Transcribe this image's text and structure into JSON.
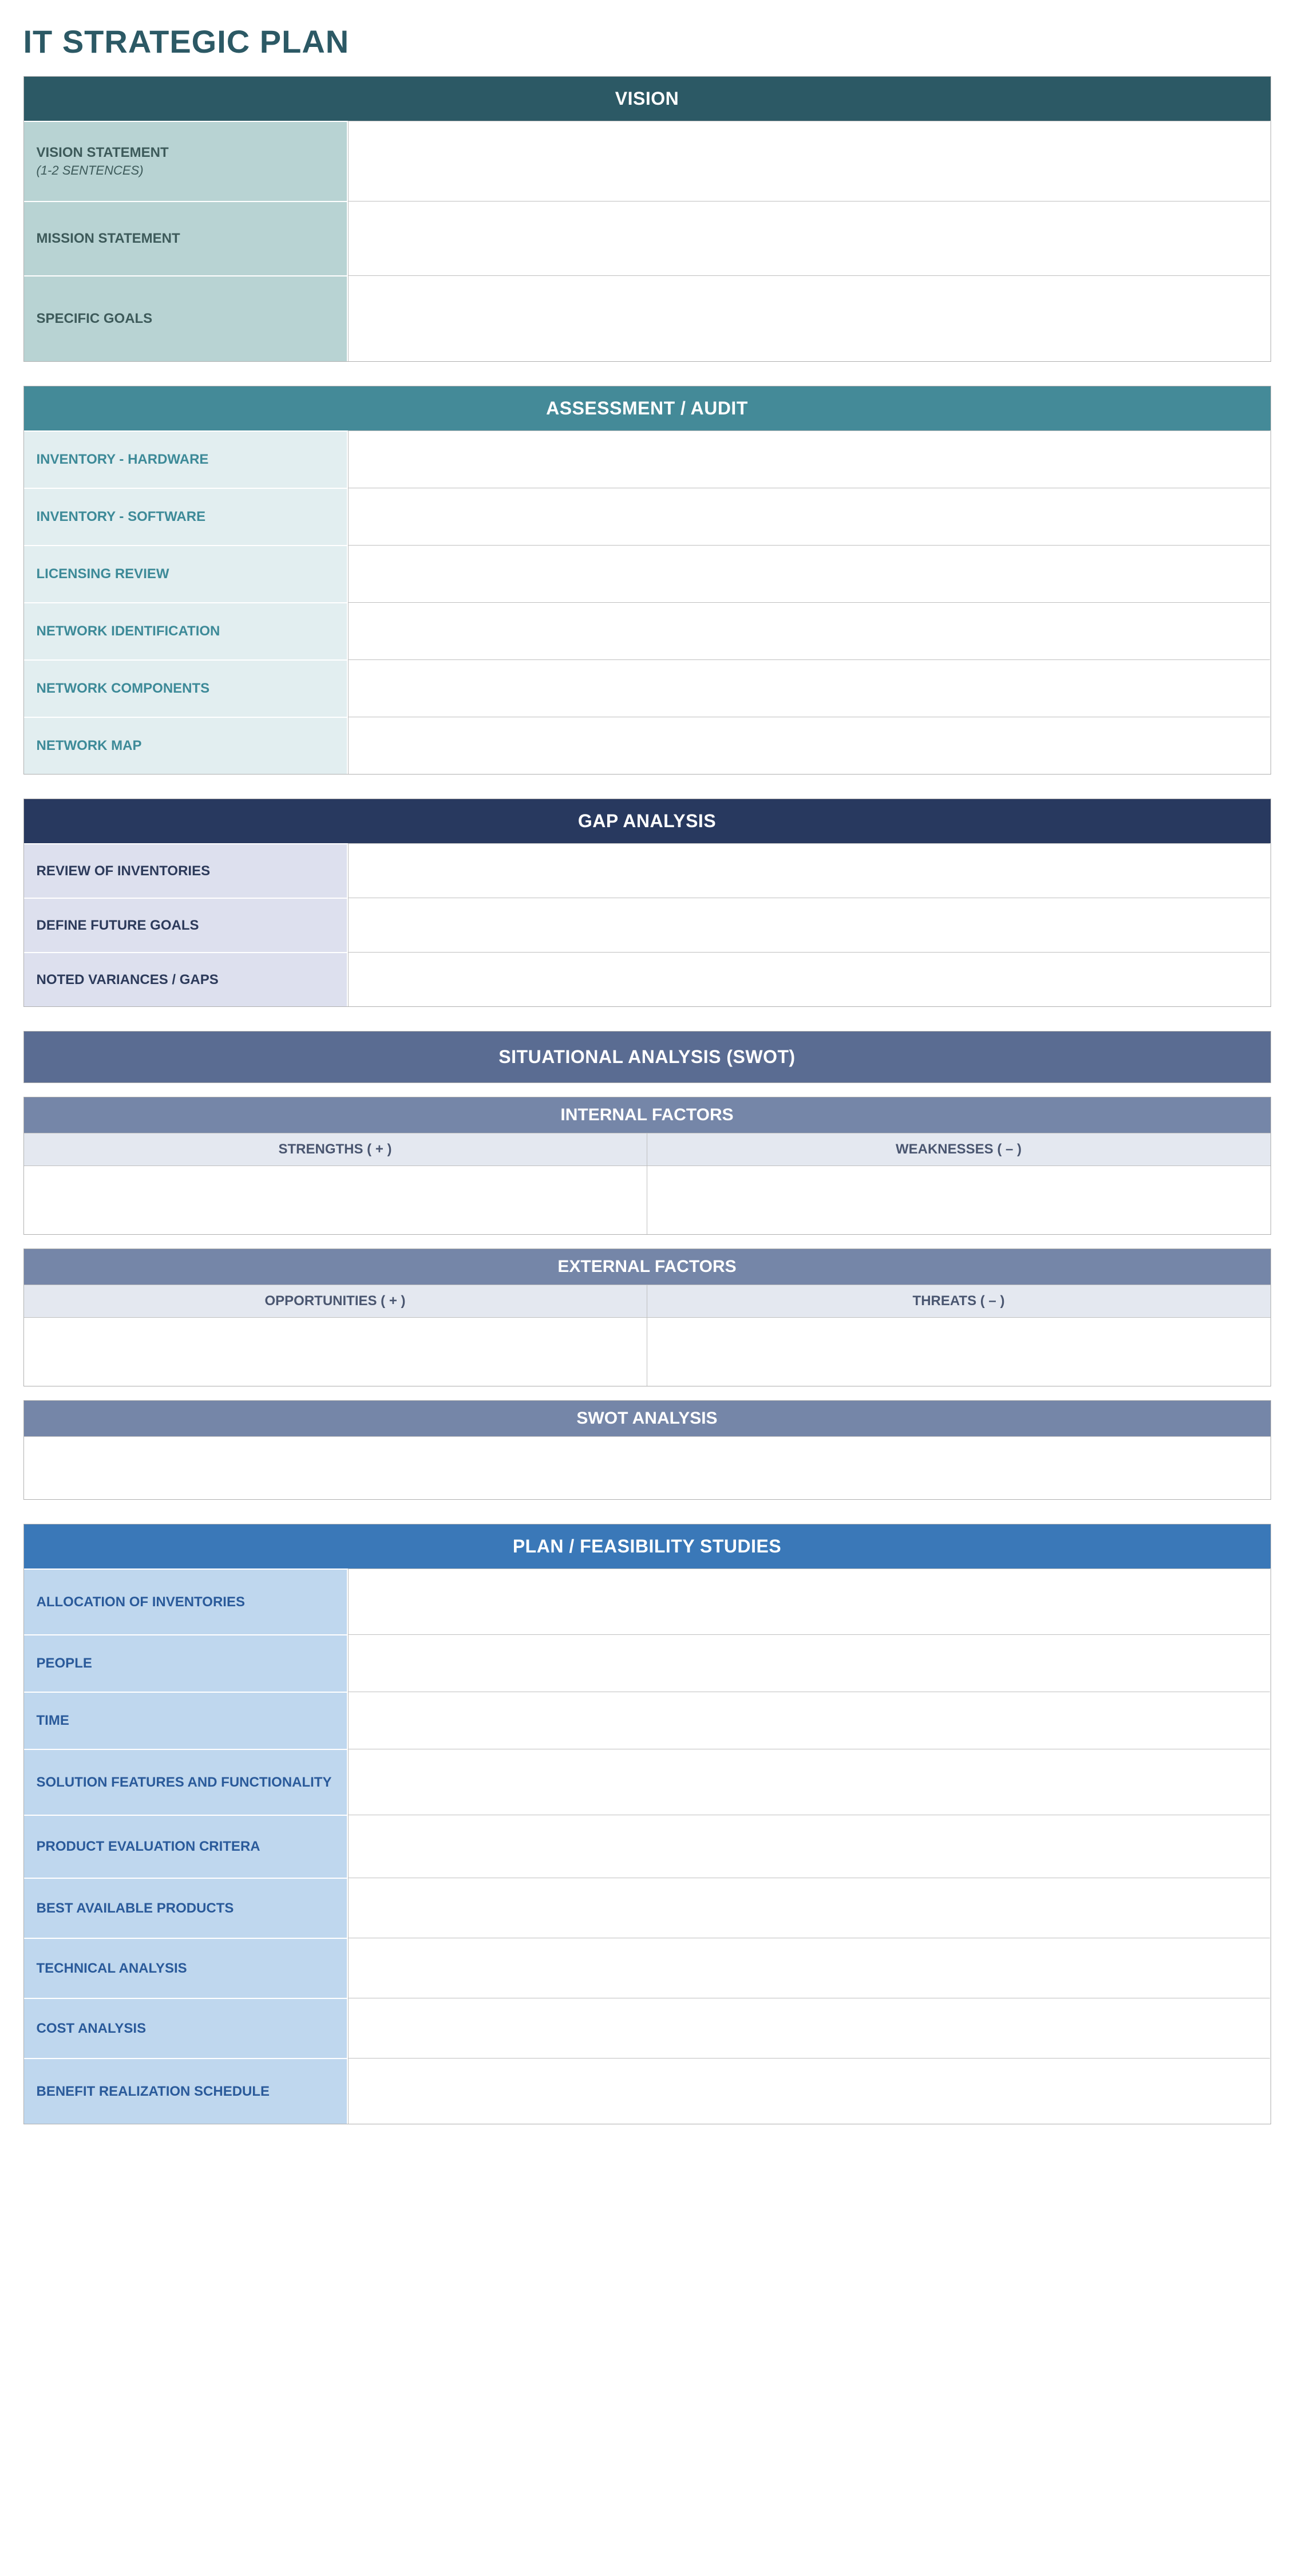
{
  "page_title": "IT STRATEGIC PLAN",
  "page_title_color": "#2c5965",
  "sections": {
    "vision": {
      "header": "VISION",
      "header_bg": "#2c5965",
      "label_bg": "#b8d3d3",
      "label_color": "#3d5a5a",
      "rows": [
        {
          "label": "VISION STATEMENT",
          "sublabel": "(1-2 SENTENCES)",
          "value": "",
          "height": 140
        },
        {
          "label": "MISSION STATEMENT",
          "value": "",
          "height": 130
        },
        {
          "label": "SPECIFIC GOALS",
          "value": "",
          "height": 150
        }
      ]
    },
    "assessment": {
      "header": "ASSESSMENT / AUDIT",
      "header_bg": "#448a98",
      "label_bg": "#e2eef0",
      "label_color": "#3d8a98",
      "rows": [
        {
          "label": "INVENTORY - HARDWARE",
          "value": "",
          "height": 100
        },
        {
          "label": "INVENTORY - SOFTWARE",
          "value": "",
          "height": 100
        },
        {
          "label": "LICENSING REVIEW",
          "value": "",
          "height": 100
        },
        {
          "label": "NETWORK IDENTIFICATION",
          "value": "",
          "height": 100
        },
        {
          "label": "NETWORK COMPONENTS",
          "value": "",
          "height": 100
        },
        {
          "label": "NETWORK MAP",
          "value": "",
          "height": 100
        }
      ]
    },
    "gap": {
      "header": "GAP ANALYSIS",
      "header_bg": "#28395f",
      "label_bg": "#dde0ee",
      "label_color": "#2c3a5a",
      "rows": [
        {
          "label": "REVIEW OF INVENTORIES",
          "value": "",
          "height": 95
        },
        {
          "label": "DEFINE FUTURE GOALS",
          "value": "",
          "height": 95
        },
        {
          "label": "NOTED VARIANCES / GAPS",
          "value": "",
          "height": 95
        }
      ]
    },
    "swot": {
      "header": "SITUATIONAL ANALYSIS (SWOT)",
      "header_bg": "#5a6c92",
      "sub_bg": "#7586a8",
      "colhead_bg": "#e4e8f0",
      "colhead_color": "#4a5670",
      "internal": {
        "title": "INTERNAL FACTORS",
        "left": "STRENGTHS ( + )",
        "right": "WEAKNESSES ( – )",
        "left_val": "",
        "right_val": ""
      },
      "external": {
        "title": "EXTERNAL FACTORS",
        "left": "OPPORTUNITIES ( + )",
        "right": "THREATS ( – )",
        "left_val": "",
        "right_val": ""
      },
      "analysis": {
        "title": "SWOT ANALYSIS",
        "value": ""
      }
    },
    "plan": {
      "header": "PLAN / FEASIBILITY STUDIES",
      "header_bg": "#3a78b8",
      "label_bg": "#bfd7ee",
      "label_color": "#2a5a9a",
      "rows": [
        {
          "label": "ALLOCATION OF INVENTORIES",
          "value": "",
          "height": 115
        },
        {
          "label": "PEOPLE",
          "value": "",
          "height": 100
        },
        {
          "label": "TIME",
          "value": "",
          "height": 100
        },
        {
          "label": "SOLUTION FEATURES AND FUNCTIONALITY",
          "value": "",
          "height": 115
        },
        {
          "label": "PRODUCT EVALUATION CRITERA",
          "value": "",
          "height": 110
        },
        {
          "label": "BEST AVAILABLE PRODUCTS",
          "value": "",
          "height": 105
        },
        {
          "label": "TECHNICAL ANALYSIS",
          "value": "",
          "height": 105
        },
        {
          "label": "COST ANALYSIS",
          "value": "",
          "height": 105
        },
        {
          "label": "BENEFIT REALIZATION SCHEDULE",
          "value": "",
          "height": 115
        }
      ]
    }
  }
}
